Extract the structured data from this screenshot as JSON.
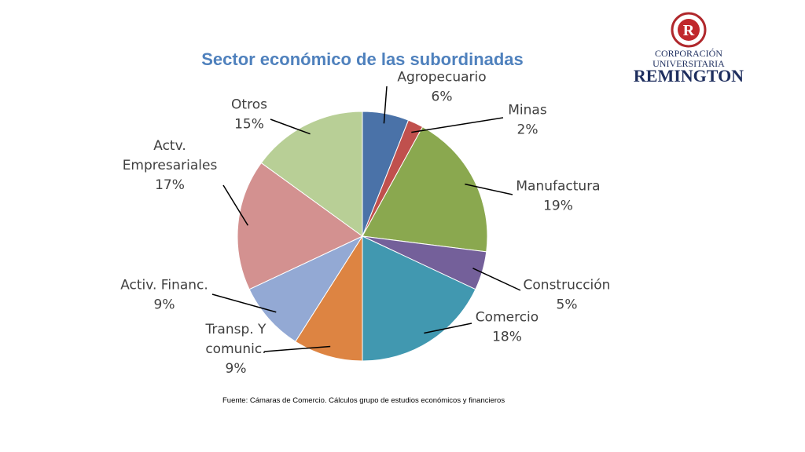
{
  "chart_data": {
    "type": "pie",
    "title": "Sector económico de las subordinadas",
    "categories": [
      "Agropecuario",
      "Minas",
      "Manufactura",
      "Construcción",
      "Comercio",
      "Transp. Y comunic.",
      "Activ. Financ.",
      "Actv. Empresariales",
      "Otros"
    ],
    "values": [
      6,
      2,
      19,
      5,
      18,
      9,
      9,
      17,
      15
    ],
    "value_labels": [
      "6%",
      "2%",
      "19%",
      "5%",
      "18%",
      "9%",
      "9%",
      "17%",
      "15%"
    ],
    "colors": [
      "#4a72a8",
      "#c0504d",
      "#8aa84f",
      "#74609a",
      "#4198b0",
      "#dd8442",
      "#93a9d4",
      "#d39190",
      "#b8cf96"
    ],
    "label_lines": [
      [
        "Agropecuario",
        "6%"
      ],
      [
        "Minas",
        "2%"
      ],
      [
        "Manufactura",
        "19%"
      ],
      [
        "Construcción",
        "5%"
      ],
      [
        "Comercio",
        "18%"
      ],
      [
        "Transp. Y",
        "comunic.",
        "9%"
      ],
      [
        "Activ. Financ.",
        "9%"
      ],
      [
        "Actv.",
        "Empresariales",
        "17%"
      ],
      [
        "Otros",
        "15%"
      ]
    ],
    "source": "Fuente: Cámaras de Comercio. Cálculos grupo de estudios económicos y financieros"
  },
  "logo": {
    "line1": "CORPORACIÓN",
    "line2": "UNIVERSITARIA",
    "line3": "REMINGTON",
    "seal_letter": "R"
  }
}
